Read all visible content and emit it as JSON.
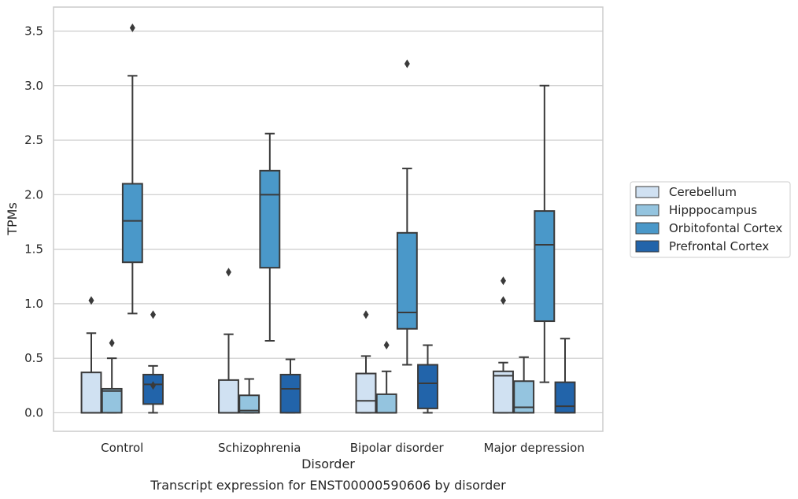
{
  "caption": "Transcript expression for ENST00000590606 by disorder",
  "chart_data": {
    "type": "box",
    "xlabel": "Disorder",
    "ylabel": "TPMs",
    "ylim": [
      -0.17,
      3.72
    ],
    "yticks": [
      0.0,
      0.5,
      1.0,
      1.5,
      2.0,
      2.5,
      3.0,
      3.5
    ],
    "ytick_labels": [
      "0.0",
      "0.5",
      "1.0",
      "1.5",
      "2.0",
      "2.5",
      "3.0",
      "3.5"
    ],
    "grid": "horizontal",
    "legend_position": "right",
    "categories": [
      "Control",
      "Schizophrenia",
      "Bipolar disorder",
      "Major depression"
    ],
    "series": [
      {
        "name": "Cerebellum",
        "color": "#d0e1f2",
        "boxes": [
          {
            "whisker_low": 0.0,
            "q1": 0.0,
            "median": 0.0,
            "q3": 0.37,
            "whisker_high": 0.73,
            "outliers": [
              1.03
            ]
          },
          {
            "whisker_low": 0.0,
            "q1": 0.0,
            "median": 0.0,
            "q3": 0.3,
            "whisker_high": 0.72,
            "outliers": [
              1.29
            ]
          },
          {
            "whisker_low": 0.0,
            "q1": 0.0,
            "median": 0.11,
            "q3": 0.36,
            "whisker_high": 0.52,
            "outliers": [
              0.9
            ]
          },
          {
            "whisker_low": 0.0,
            "q1": 0.0,
            "median": 0.34,
            "q3": 0.38,
            "whisker_high": 0.46,
            "outliers": [
              1.03,
              1.21
            ]
          }
        ]
      },
      {
        "name": "Hipppocampus",
        "color": "#94c4df",
        "boxes": [
          {
            "whisker_low": 0.0,
            "q1": 0.0,
            "median": 0.2,
            "q3": 0.22,
            "whisker_high": 0.5,
            "outliers": [
              0.64
            ]
          },
          {
            "whisker_low": 0.0,
            "q1": 0.0,
            "median": 0.02,
            "q3": 0.16,
            "whisker_high": 0.31,
            "outliers": []
          },
          {
            "whisker_low": 0.0,
            "q1": 0.0,
            "median": 0.0,
            "q3": 0.17,
            "whisker_high": 0.38,
            "outliers": [
              0.62
            ]
          },
          {
            "whisker_low": 0.0,
            "q1": 0.0,
            "median": 0.05,
            "q3": 0.29,
            "whisker_high": 0.51,
            "outliers": []
          }
        ]
      },
      {
        "name": "Orbitofontal Cortex",
        "color": "#4a98c9",
        "boxes": [
          {
            "whisker_low": 0.91,
            "q1": 1.38,
            "median": 1.76,
            "q3": 2.1,
            "whisker_high": 3.09,
            "outliers": [
              3.53
            ]
          },
          {
            "whisker_low": 0.66,
            "q1": 1.33,
            "median": 2.0,
            "q3": 2.22,
            "whisker_high": 2.56,
            "outliers": []
          },
          {
            "whisker_low": 0.44,
            "q1": 0.77,
            "median": 0.92,
            "q3": 1.65,
            "whisker_high": 2.24,
            "outliers": [
              3.2
            ]
          },
          {
            "whisker_low": 0.28,
            "q1": 0.84,
            "median": 1.54,
            "q3": 1.85,
            "whisker_high": 3.0,
            "outliers": []
          }
        ]
      },
      {
        "name": "Prefrontal Cortex",
        "color": "#2264aa",
        "boxes": [
          {
            "whisker_low": 0.0,
            "q1": 0.08,
            "median": 0.26,
            "q3": 0.35,
            "whisker_high": 0.43,
            "outliers": [
              0.25,
              0.9
            ]
          },
          {
            "whisker_low": 0.0,
            "q1": 0.0,
            "median": 0.22,
            "q3": 0.35,
            "whisker_high": 0.49,
            "outliers": []
          },
          {
            "whisker_low": 0.0,
            "q1": 0.04,
            "median": 0.27,
            "q3": 0.44,
            "whisker_high": 0.62,
            "outliers": []
          },
          {
            "whisker_low": 0.0,
            "q1": 0.0,
            "median": 0.06,
            "q3": 0.28,
            "whisker_high": 0.68,
            "outliers": []
          }
        ]
      }
    ]
  }
}
